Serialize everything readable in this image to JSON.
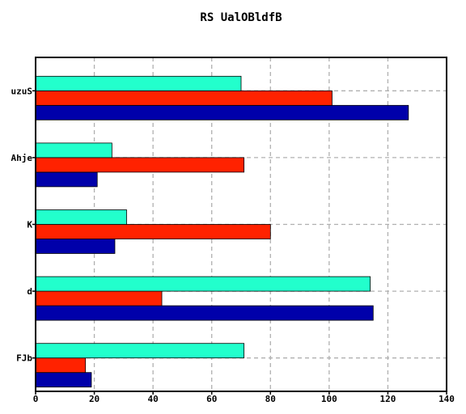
{
  "chart_data": {
    "type": "bar",
    "orientation": "horizontal",
    "title": "RS UalOBldfB",
    "xlabel": "",
    "ylabel": "",
    "categories": [
      "FJb",
      "d",
      "K",
      "Ahje",
      "uzuS"
    ],
    "series": [
      {
        "color": "#0000aa",
        "values": [
          19,
          115,
          27,
          21,
          127
        ]
      },
      {
        "color": "#ff2200",
        "values": [
          17,
          43,
          80,
          71,
          101
        ]
      },
      {
        "color": "#22ffcc",
        "values": [
          71,
          114,
          31,
          26,
          70
        ]
      }
    ],
    "xlim": [
      0,
      140
    ],
    "xticks": [
      "0",
      "20",
      "40",
      "60",
      "80",
      "100",
      "120",
      "140"
    ],
    "grid": true,
    "legend": "none"
  }
}
